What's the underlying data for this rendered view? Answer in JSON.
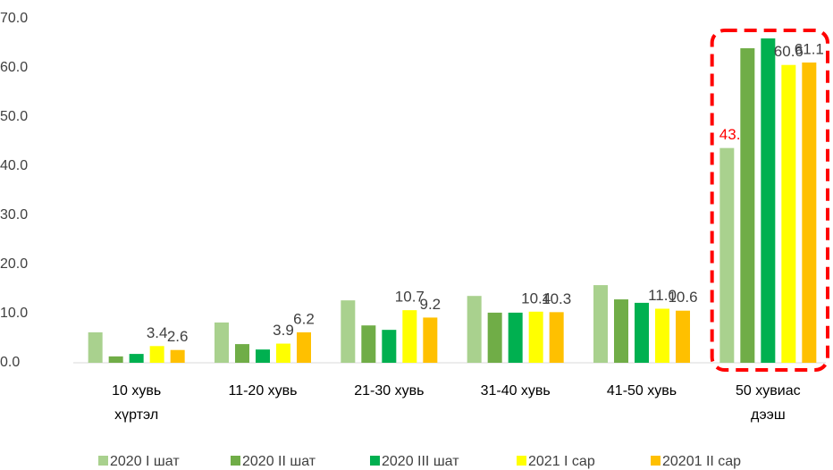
{
  "chart_data": {
    "type": "bar",
    "categories": [
      [
        "10 хувь",
        "хүртэл"
      ],
      [
        "11-20 хувь"
      ],
      [
        "21-30 хувь"
      ],
      [
        "31-40 хувь"
      ],
      [
        "41-50 хувь"
      ],
      [
        "50 хувиас",
        "дээш"
      ]
    ],
    "series": [
      {
        "name": "2020 I шат",
        "color": "#a9d18e",
        "values": [
          6.2,
          8.2,
          12.7,
          13.6,
          15.8,
          43.7
        ],
        "value_labels": [
          null,
          null,
          null,
          null,
          null,
          "43.7"
        ],
        "label_color": "#ff0000"
      },
      {
        "name": "2020 II шат",
        "color": "#70ad47",
        "values": [
          1.3,
          3.8,
          7.6,
          10.2,
          12.9,
          64.0
        ]
      },
      {
        "name": "2020 III шат",
        "color": "#00b050",
        "values": [
          1.8,
          2.7,
          6.7,
          10.2,
          12.2,
          66.0
        ]
      },
      {
        "name": "2021 I сар",
        "color": "#ffff00",
        "values": [
          3.4,
          3.9,
          10.7,
          10.4,
          11.0,
          60.6
        ],
        "value_labels": [
          "3.4",
          "3.9",
          "10.7",
          "10.4",
          "11.0",
          "60.6"
        ],
        "label_color": "#404040"
      },
      {
        "name": "20201 II сар",
        "color": "#ffc000",
        "values": [
          2.6,
          6.2,
          9.2,
          10.3,
          10.6,
          61.1
        ],
        "value_labels": [
          "2.6",
          "6.2",
          "9.2",
          "10.3",
          "10.6",
          "61.1"
        ],
        "label_color": "#404040"
      }
    ],
    "ylim": [
      0,
      70
    ],
    "yticks": [
      {
        "value": 0,
        "label": "0.0"
      },
      {
        "value": 10,
        "label": "10.0"
      },
      {
        "value": 20,
        "label": "20.0"
      },
      {
        "value": 30,
        "label": "30.0"
      },
      {
        "value": 40,
        "label": "40.0"
      },
      {
        "value": 50,
        "label": "50.0"
      },
      {
        "value": 60,
        "label": "60.0"
      },
      {
        "value": 70,
        "label": "70.0"
      }
    ],
    "grid": false,
    "legend": "bottom",
    "highlight_category": 5
  }
}
